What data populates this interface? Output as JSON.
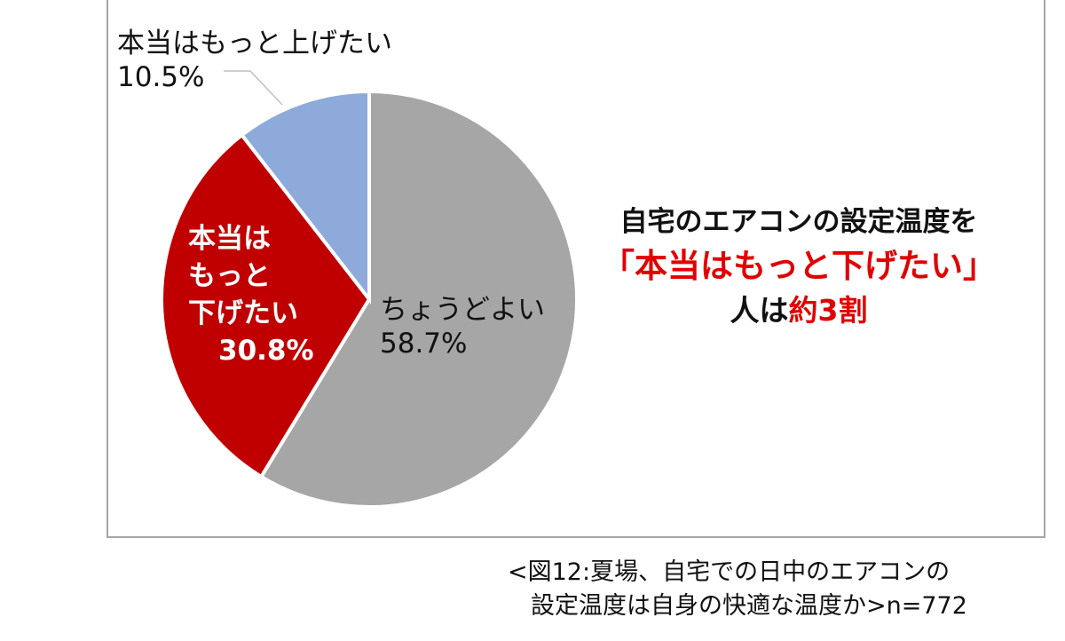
{
  "chart_data": {
    "type": "pie",
    "start_angle": "12 o'clock",
    "direction": "clockwise",
    "slices": [
      {
        "label": "ちょうどよい",
        "value": 58.7,
        "value_label": "58.7%",
        "color": "#a6a6a6"
      },
      {
        "label": "本当はもっと下げたい",
        "value": 30.8,
        "value_label": "30.8%",
        "color": "#c00000"
      },
      {
        "label": "本当はもっと上げたい",
        "value": 10.5,
        "value_label": "10.5%",
        "color": "#8eaadb"
      }
    ],
    "down_label_lines": [
      "本当は",
      "もっと",
      "下げたい"
    ]
  },
  "annotation": {
    "line1": "自宅のエアコンの設定温度を",
    "line2": "「本当はもっと下げたい」",
    "line3_prefix": "人は",
    "line3_highlight": "約3割",
    "highlight_color": "#e00000"
  },
  "caption": {
    "line1": "<図12:夏場、自宅での日中のエアコンの",
    "line2": "設定温度は自身の快適な温度か>n=772"
  }
}
